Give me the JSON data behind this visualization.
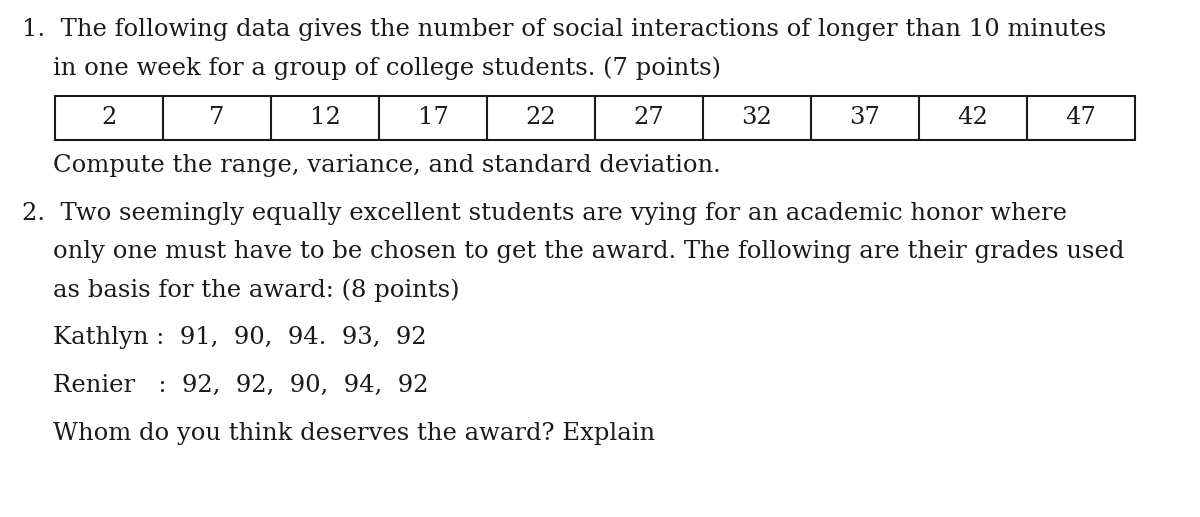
{
  "background_color": "#ffffff",
  "text_color": "#1a1a1a",
  "font_family": "DejaVu Serif",
  "line1": "1.  The following data gives the number of social interactions of longer than 10 minutes",
  "line2": "    in one week for a group of college students. (7 points)",
  "table_values": [
    "2",
    "7",
    "12",
    "17",
    "22",
    "27",
    "32",
    "37",
    "42",
    "47"
  ],
  "line3": "    Compute the range, variance, and standard deviation.",
  "line4": "2.  Two seemingly equally excellent students are vying for an academic honor where",
  "line5": "    only one must have to be chosen to get the award. The following are their grades used",
  "line6": "    as basis for the award: (8 points)",
  "line7": "    Kathlyn :  91,  90,  94.  93,  92",
  "line8": "    Renier   :  92,  92,  90,  94,  92",
  "line9": "    Whom do you think deserves the award? Explain",
  "main_fontsize": 17.5,
  "table_fontsize": 17.5,
  "fig_width": 12.0,
  "fig_height": 5.17,
  "dpi": 100
}
